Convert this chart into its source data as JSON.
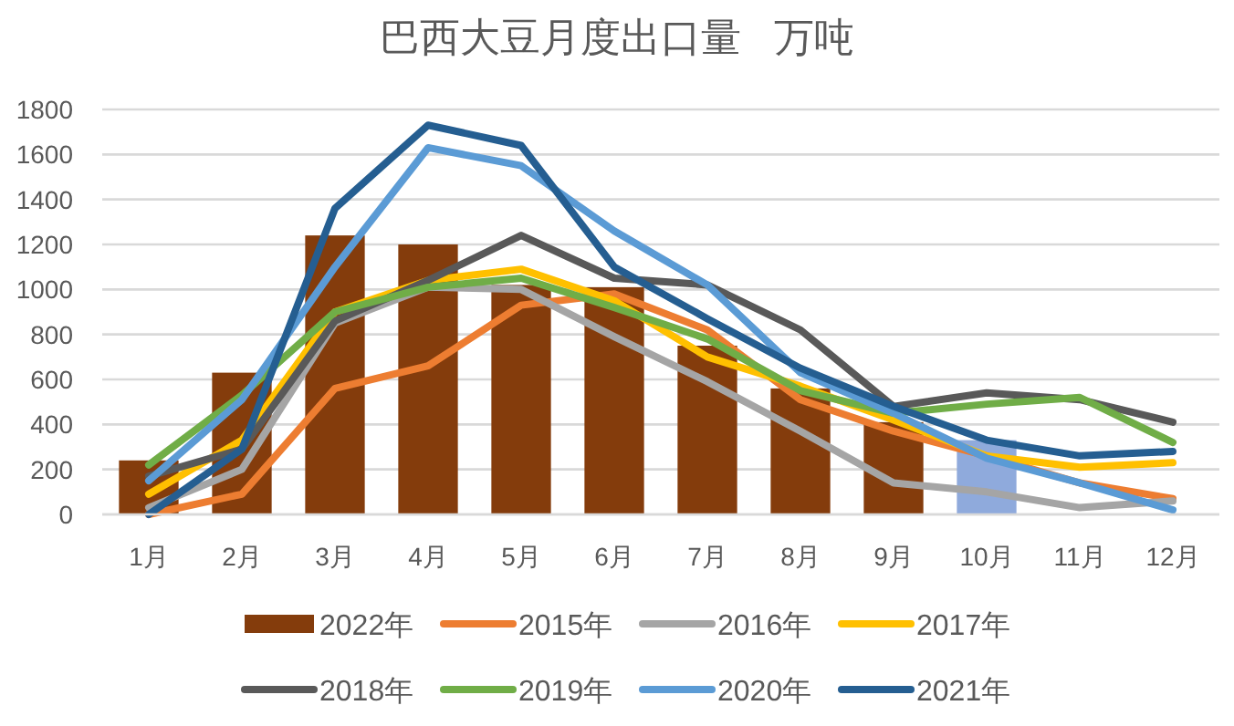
{
  "chart_data": {
    "type": "line",
    "title": "巴西大豆月度出口量   万吨",
    "categories": [
      "1月",
      "2月",
      "3月",
      "4月",
      "5月",
      "6月",
      "7月",
      "8月",
      "9月",
      "10月",
      "11月",
      "12月"
    ],
    "ylim": [
      0,
      1800
    ],
    "yticks": [
      0,
      200,
      400,
      600,
      800,
      1000,
      1200,
      1400,
      1600,
      1800
    ],
    "grid": "y",
    "legend": "bottom",
    "marker": "none",
    "series": [
      {
        "name": "2022年",
        "type": "bar",
        "color": "#843c0c",
        "colors": [
          "#843c0c",
          "#843c0c",
          "#843c0c",
          "#843c0c",
          "#843c0c",
          "#843c0c",
          "#843c0c",
          "#843c0c",
          "#843c0c",
          "#8faadc",
          null,
          null
        ],
        "values": [
          240,
          630,
          1240,
          1200,
          1020,
          1010,
          750,
          560,
          410,
          330,
          null,
          null
        ]
      },
      {
        "name": "2015年",
        "color": "#ed7d31",
        "values": [
          0,
          90,
          560,
          660,
          930,
          980,
          820,
          510,
          370,
          260,
          140,
          70
        ]
      },
      {
        "name": "2016年",
        "color": "#a5a5a5",
        "values": [
          30,
          200,
          850,
          1010,
          1000,
          790,
          590,
          370,
          140,
          100,
          30,
          60
        ]
      },
      {
        "name": "2017年",
        "color": "#ffc000",
        "values": [
          90,
          330,
          900,
          1040,
          1090,
          950,
          700,
          570,
          420,
          260,
          210,
          230
        ]
      },
      {
        "name": "2018年",
        "color": "#595959",
        "values": [
          170,
          290,
          860,
          1040,
          1240,
          1050,
          1020,
          820,
          480,
          540,
          510,
          410
        ]
      },
      {
        "name": "2019年",
        "color": "#70ad47",
        "values": [
          220,
          530,
          900,
          1010,
          1050,
          920,
          780,
          550,
          450,
          490,
          520,
          320
        ]
      },
      {
        "name": "2020年",
        "color": "#5b9bd5",
        "values": [
          150,
          510,
          1100,
          1630,
          1550,
          1260,
          1020,
          630,
          450,
          250,
          140,
          20
        ]
      },
      {
        "name": "2021年",
        "color": "#255e91",
        "values": [
          0,
          290,
          1360,
          1730,
          1640,
          1100,
          870,
          650,
          480,
          330,
          260,
          280
        ]
      }
    ]
  }
}
